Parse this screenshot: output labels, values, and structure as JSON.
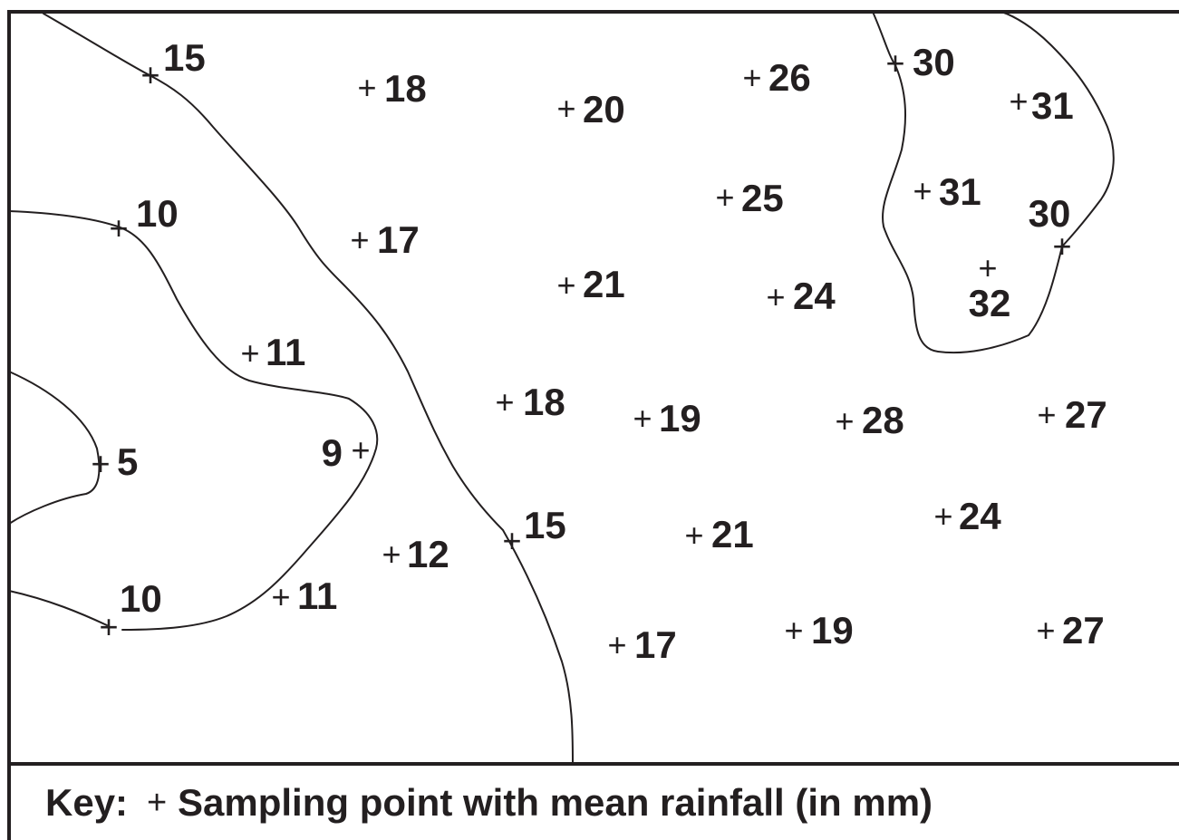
{
  "figure": {
    "key_label": "Key:",
    "key_symbol": "+",
    "key_description": "Sampling point with mean rainfall (in mm)",
    "ink_color": "#231f20",
    "background_color": "#ffffff"
  },
  "chart_data": {
    "type": "scatter",
    "unit": "mm",
    "isoline_values": [
      5,
      10,
      15,
      30
    ],
    "sampling_points": [
      {
        "value": 15
      },
      {
        "value": 18
      },
      {
        "value": 20
      },
      {
        "value": 26
      },
      {
        "value": 30
      },
      {
        "value": 31
      },
      {
        "value": 25
      },
      {
        "value": 31
      },
      {
        "value": 30
      },
      {
        "value": 10
      },
      {
        "value": 17
      },
      {
        "value": 21
      },
      {
        "value": 24
      },
      {
        "value": 32
      },
      {
        "value": 11
      },
      {
        "value": 18
      },
      {
        "value": 19
      },
      {
        "value": 28
      },
      {
        "value": 27
      },
      {
        "value": 5
      },
      {
        "value": 9
      },
      {
        "value": 15
      },
      {
        "value": 12
      },
      {
        "value": 21
      },
      {
        "value": 24
      },
      {
        "value": 10
      },
      {
        "value": 11
      },
      {
        "value": 17
      },
      {
        "value": 19
      },
      {
        "value": 27
      }
    ]
  }
}
